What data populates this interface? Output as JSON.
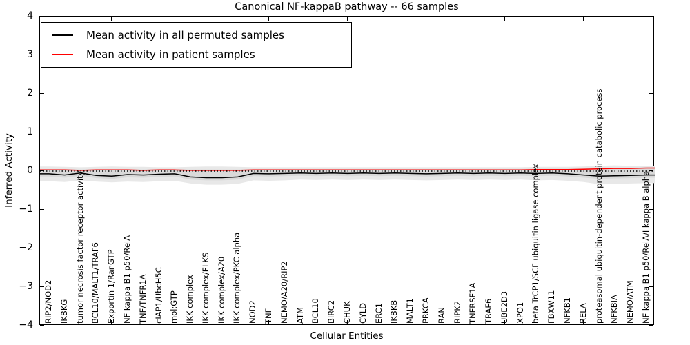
{
  "title": "Canonical NF-kappaB pathway -- 66 samples",
  "axes": {
    "x_label": "Cellular Entities",
    "y_label": "Inferred Activity",
    "y_tick_labels": [
      "4",
      "3",
      "2",
      "1",
      "0",
      "−1",
      "−2",
      "−3",
      "−4"
    ],
    "y_tick_values": [
      4,
      3,
      2,
      1,
      0,
      -1,
      -2,
      -3,
      -4
    ]
  },
  "legend": {
    "items": [
      {
        "label": "Mean activity in all permuted samples",
        "color": "#000000"
      },
      {
        "label": "Mean activity in patient samples",
        "color": "#ff0000"
      }
    ]
  },
  "chart_data": {
    "type": "line",
    "title": "Canonical NF-kappaB pathway -- 66 samples",
    "xlabel": "Cellular Entities",
    "ylabel": "Inferred Activity",
    "ylim": [
      -4,
      4
    ],
    "grid": false,
    "legend_position": "upper left",
    "reference_line_y": 0,
    "x_major_tick_every": 5,
    "categories": [
      "RIP2/NOD2",
      "IKBKG",
      "tumor necrosis factor receptor activity",
      "BCL10/MALT1/TRAF6",
      "Exportin 1/RanGTP",
      "NF kappa B1 p50/RelA",
      "TNF/TNFR1A",
      "cIAP1/UbcH5C",
      "mol:GTP",
      "IKK complex",
      "IKK complex/ELKS",
      "IKK complex/A20",
      "IKK complex/PKC alpha",
      "NOD2",
      "TNF",
      "NEMO/A20/RIP2",
      "ATM",
      "BCL10",
      "BIRC2",
      "CHUK",
      "CYLD",
      "ERC1",
      "IKBKB",
      "MALT1",
      "PRKCA",
      "RAN",
      "RIPK2",
      "TNFRSF1A",
      "TRAF6",
      "UBE2D3",
      "XPO1",
      "beta TrCP1/SCF ubiquitin ligase complex",
      "FBXW11",
      "NFKB1",
      "RELA",
      "proteasomal ubiquitin-dependent protein catabolic process",
      "NFKBIA",
      "NEMO/ATM",
      "NF kappa B1 p50/RelA/I kappa B alpha"
    ],
    "series": [
      {
        "name": "Mean activity in all permuted samples",
        "color": "#000000",
        "style": "solid",
        "values": [
          -0.07,
          -0.1,
          -0.05,
          -0.11,
          -0.13,
          -0.09,
          -0.1,
          -0.08,
          -0.07,
          -0.15,
          -0.17,
          -0.17,
          -0.15,
          -0.06,
          -0.07,
          -0.06,
          -0.05,
          -0.06,
          -0.05,
          -0.06,
          -0.05,
          -0.06,
          -0.05,
          -0.06,
          -0.07,
          -0.06,
          -0.05,
          -0.06,
          -0.05,
          -0.06,
          -0.05,
          -0.06,
          -0.05,
          -0.07,
          -0.1,
          -0.13,
          -0.12,
          -0.11,
          -0.1
        ]
      },
      {
        "name": "Mean activity in patient samples",
        "color": "#ff0000",
        "style": "solid",
        "values": [
          0.03,
          0.03,
          0.02,
          0.03,
          0.03,
          0.03,
          0.02,
          0.03,
          0.03,
          0.02,
          0.02,
          0.02,
          0.02,
          0.03,
          0.03,
          0.03,
          0.03,
          0.03,
          0.03,
          0.03,
          0.03,
          0.03,
          0.03,
          0.03,
          0.03,
          0.03,
          0.03,
          0.03,
          0.03,
          0.03,
          0.03,
          0.04,
          0.04,
          0.04,
          0.05,
          0.06,
          0.07,
          0.07,
          0.08
        ]
      }
    ],
    "band": {
      "name": "permuted activity range",
      "color": "#e8e8e8",
      "inner_color": "#d9d9d9",
      "upper": [
        0.12,
        0.11,
        0.1,
        0.11,
        0.12,
        0.11,
        0.11,
        0.1,
        0.1,
        0.11,
        0.12,
        0.12,
        0.11,
        0.1,
        0.1,
        0.1,
        0.1,
        0.1,
        0.1,
        0.1,
        0.1,
        0.1,
        0.1,
        0.1,
        0.1,
        0.1,
        0.1,
        0.1,
        0.1,
        0.1,
        0.1,
        0.11,
        0.11,
        0.11,
        0.12,
        0.14,
        0.15,
        0.14,
        0.13
      ],
      "lower": [
        -0.26,
        -0.28,
        -0.24,
        -0.27,
        -0.29,
        -0.27,
        -0.28,
        -0.26,
        -0.25,
        -0.32,
        -0.35,
        -0.35,
        -0.33,
        -0.24,
        -0.25,
        -0.24,
        -0.22,
        -0.23,
        -0.22,
        -0.23,
        -0.22,
        -0.23,
        -0.22,
        -0.23,
        -0.24,
        -0.23,
        -0.22,
        -0.23,
        -0.22,
        -0.23,
        -0.22,
        -0.24,
        -0.23,
        -0.25,
        -0.28,
        -0.34,
        -0.33,
        -0.32,
        -0.31
      ]
    }
  }
}
